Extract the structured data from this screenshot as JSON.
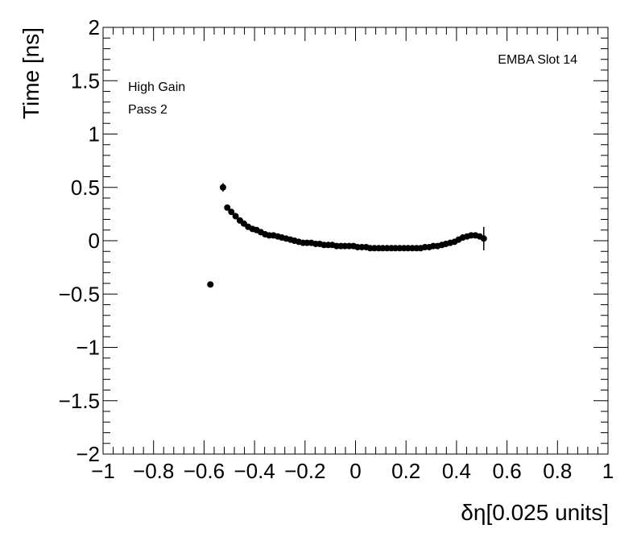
{
  "chart_data": {
    "type": "scatter",
    "title": "",
    "xlabel": "δη[0.025 units]",
    "ylabel": "Time [ns]",
    "xlim": [
      -1,
      1
    ],
    "ylim": [
      -2,
      2
    ],
    "x_ticks": [
      -1,
      -0.8,
      -0.6,
      -0.4,
      -0.2,
      0,
      0.2,
      0.4,
      0.6,
      0.8,
      1
    ],
    "x_tick_labels": [
      "−1",
      "−0.8",
      "−0.6",
      "−0.4",
      "−0.2",
      "0",
      "0.2",
      "0.4",
      "0.6",
      "0.8",
      "1"
    ],
    "y_ticks": [
      -2,
      -1.5,
      -1,
      -0.5,
      0,
      0.5,
      1,
      1.5,
      2
    ],
    "y_tick_labels": [
      "−2",
      "−1.5",
      "−1",
      "−0.5",
      "0",
      "0.5",
      "1",
      "1.5",
      "2"
    ],
    "grid": false,
    "annotations": {
      "top_right": "EMBA Slot 14",
      "line1": "High Gain",
      "line2": "Pass 2"
    },
    "marker_color": "#000000",
    "series": [
      {
        "x": [
          -0.575,
          -0.525,
          -0.508,
          -0.492,
          -0.475,
          -0.458,
          -0.442,
          -0.425,
          -0.408,
          -0.392,
          -0.375,
          -0.358,
          -0.342,
          -0.325,
          -0.308,
          -0.292,
          -0.275,
          -0.258,
          -0.242,
          -0.225,
          -0.208,
          -0.192,
          -0.175,
          -0.158,
          -0.142,
          -0.125,
          -0.108,
          -0.092,
          -0.075,
          -0.058,
          -0.042,
          -0.025,
          -0.008,
          0.008,
          0.025,
          0.042,
          0.058,
          0.075,
          0.092,
          0.108,
          0.125,
          0.142,
          0.158,
          0.175,
          0.192,
          0.208,
          0.225,
          0.242,
          0.258,
          0.275,
          0.292,
          0.308,
          0.325,
          0.342,
          0.358,
          0.375,
          0.392,
          0.408,
          0.425,
          0.442,
          0.458,
          0.475,
          0.492,
          0.508
        ],
        "y": [
          -0.41,
          0.5,
          0.31,
          0.27,
          0.23,
          0.19,
          0.16,
          0.13,
          0.11,
          0.1,
          0.08,
          0.06,
          0.05,
          0.05,
          0.04,
          0.03,
          0.02,
          0.01,
          0.0,
          -0.01,
          -0.02,
          -0.02,
          -0.02,
          -0.03,
          -0.03,
          -0.04,
          -0.04,
          -0.04,
          -0.05,
          -0.05,
          -0.05,
          -0.05,
          -0.05,
          -0.06,
          -0.06,
          -0.06,
          -0.07,
          -0.07,
          -0.07,
          -0.07,
          -0.07,
          -0.07,
          -0.07,
          -0.07,
          -0.07,
          -0.07,
          -0.07,
          -0.07,
          -0.07,
          -0.06,
          -0.06,
          -0.05,
          -0.05,
          -0.04,
          -0.03,
          -0.02,
          -0.01,
          0.01,
          0.03,
          0.04,
          0.05,
          0.05,
          0.04,
          0.02
        ],
        "yerr": [
          0.02,
          0.04,
          0.02,
          0.015,
          0.012,
          0.01,
          0.01,
          0.01,
          0.01,
          0.01,
          0.01,
          0.01,
          0.01,
          0.01,
          0.01,
          0.01,
          0.01,
          0.01,
          0.01,
          0.01,
          0.01,
          0.01,
          0.01,
          0.01,
          0.01,
          0.01,
          0.01,
          0.01,
          0.01,
          0.01,
          0.01,
          0.01,
          0.01,
          0.01,
          0.01,
          0.01,
          0.01,
          0.01,
          0.01,
          0.01,
          0.01,
          0.01,
          0.01,
          0.01,
          0.01,
          0.01,
          0.01,
          0.01,
          0.01,
          0.01,
          0.01,
          0.01,
          0.01,
          0.01,
          0.01,
          0.01,
          0.01,
          0.01,
          0.01,
          0.01,
          0.01,
          0.015,
          0.02,
          0.11
        ]
      }
    ]
  }
}
